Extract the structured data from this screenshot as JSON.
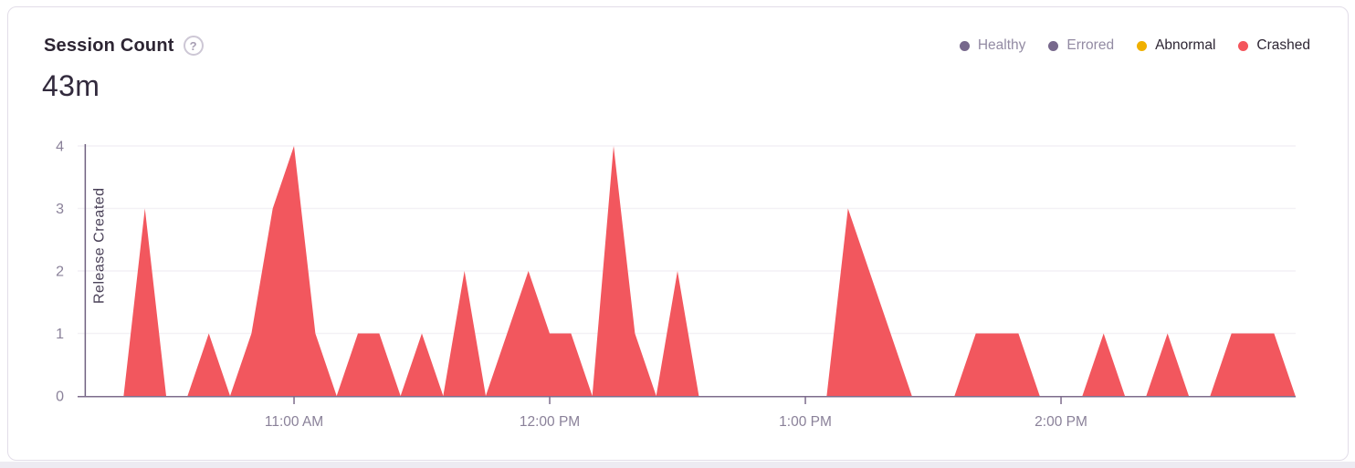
{
  "header": {
    "title": "Session Count",
    "help_icon_glyph": "?",
    "value": "43m"
  },
  "legend": {
    "items": [
      {
        "label": "Healthy",
        "dot_color": "#77688c",
        "text_color": "#938ba3",
        "active": false
      },
      {
        "label": "Errored",
        "dot_color": "#77688c",
        "text_color": "#938ba3",
        "active": false
      },
      {
        "label": "Abnormal",
        "dot_color": "#f0b000",
        "text_color": "#2d2533",
        "active": true
      },
      {
        "label": "Crashed",
        "dot_color": "#f4555c",
        "text_color": "#2d2533",
        "active": true
      }
    ]
  },
  "chart_data": {
    "type": "area",
    "title": "Session Count",
    "ylabel": "",
    "xlabel": "",
    "ylim": [
      0,
      4
    ],
    "grid": true,
    "legend_position": "top-right",
    "x_tick_labels": [
      "11:00 AM",
      "12:00 PM",
      "1:00 PM",
      "2:00 PM"
    ],
    "y_tick_labels": [
      "0",
      "1",
      "2",
      "3",
      "4"
    ],
    "series": [
      {
        "name": "Crashed",
        "color": "#f2575e",
        "start_time": "10:10 AM",
        "end_time": "2:55 PM",
        "interval_minutes": 5,
        "values": [
          0,
          0,
          0,
          3,
          0,
          0,
          1,
          0,
          1,
          3,
          4,
          1,
          0,
          1,
          1,
          0,
          1,
          0,
          2,
          0,
          1,
          2,
          1,
          1,
          0,
          4,
          1,
          0,
          2,
          0,
          0,
          0,
          0,
          0,
          0,
          0,
          3,
          2,
          1,
          0,
          0,
          0,
          1,
          1,
          1,
          0,
          0,
          0,
          1,
          0,
          0,
          1,
          0,
          0,
          1,
          1,
          1,
          0
        ]
      }
    ],
    "annotations": [
      {
        "type": "vertical-line",
        "label": "Release Created",
        "time": "10:11 AM",
        "color": "#6f6180",
        "label_color": "#4a4158"
      }
    ],
    "colors": {
      "axis_line": "#7d6c8c",
      "gridline": "#f3f1f6",
      "tick_label": "#8a8199"
    }
  }
}
